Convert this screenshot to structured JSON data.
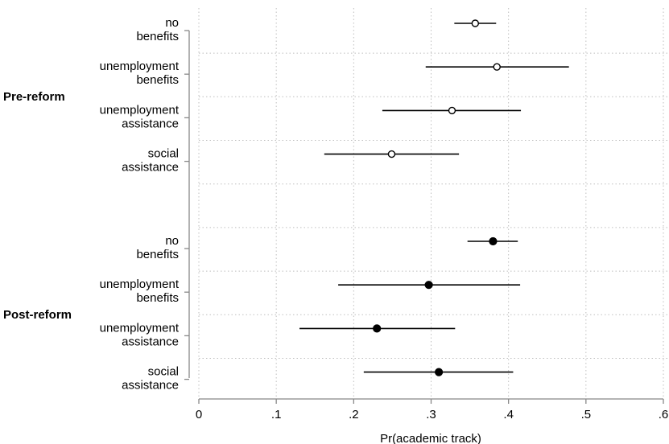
{
  "chart_data": {
    "type": "scatter",
    "subtype": "coefficient-plot-with-confidence-intervals",
    "xlabel": "Pr(academic track)",
    "xlim": [
      0,
      0.6
    ],
    "xticks": [
      0,
      0.1,
      0.2,
      0.3,
      0.4,
      0.5,
      0.6
    ],
    "xtick_labels": [
      "0",
      ".1",
      ".2",
      ".3",
      ".4",
      ".5",
      ".6"
    ],
    "grid": true,
    "groups": [
      {
        "name": "Pre-reform",
        "marker": "hollow-circle",
        "rows": [
          {
            "label": [
              "no",
              "benefits"
            ],
            "estimate": 0.357,
            "ci": [
              0.33,
              0.384
            ]
          },
          {
            "label": [
              "unemployment",
              "benefits"
            ],
            "estimate": 0.385,
            "ci": [
              0.293,
              0.478
            ]
          },
          {
            "label": [
              "unemployment",
              "assistance"
            ],
            "estimate": 0.327,
            "ci": [
              0.237,
              0.416
            ]
          },
          {
            "label": [
              "social",
              "assistance"
            ],
            "estimate": 0.249,
            "ci": [
              0.162,
              0.336
            ]
          }
        ]
      },
      {
        "name": "Post-reform",
        "marker": "filled-circle",
        "rows": [
          {
            "label": [
              "no",
              "benefits"
            ],
            "estimate": 0.38,
            "ci": [
              0.347,
              0.412
            ]
          },
          {
            "label": [
              "unemployment",
              "benefits"
            ],
            "estimate": 0.297,
            "ci": [
              0.18,
              0.415
            ]
          },
          {
            "label": [
              "unemployment",
              "assistance"
            ],
            "estimate": 0.23,
            "ci": [
              0.13,
              0.331
            ]
          },
          {
            "label": [
              "social",
              "assistance"
            ],
            "estimate": 0.31,
            "ci": [
              0.213,
              0.406
            ]
          }
        ]
      }
    ],
    "colors": {
      "line": "#000000",
      "grid": "#bfbfbf",
      "axis": "#888888"
    }
  }
}
